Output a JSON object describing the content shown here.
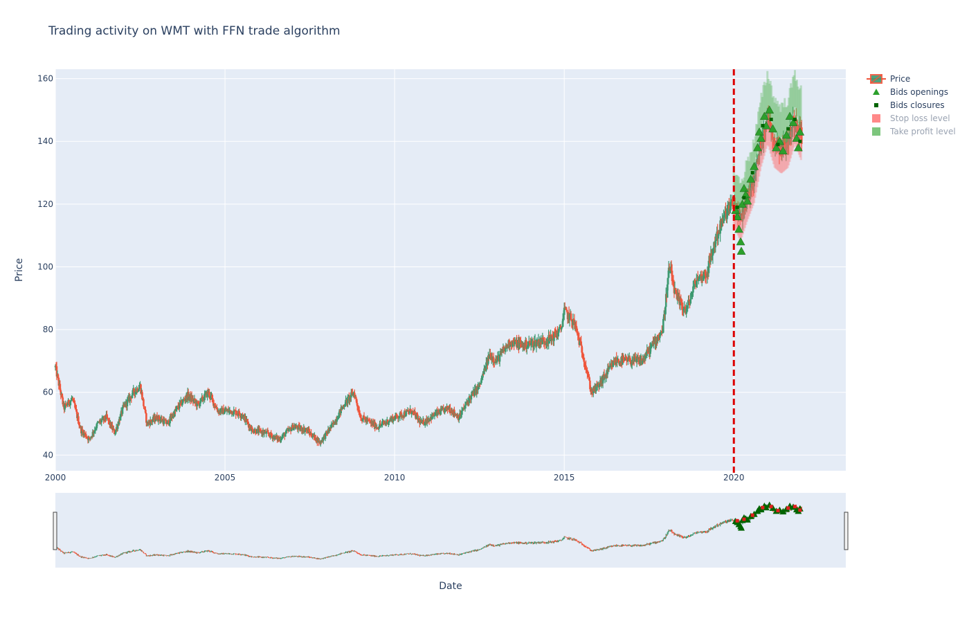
{
  "chart_data": {
    "type": "candlestick",
    "title": "Trading activity on WMT with FFN trade algorithm",
    "xlabel": "Date",
    "ylabel": "Price",
    "xlim": [
      2000,
      2023.3
    ],
    "ylim": [
      35,
      163
    ],
    "x_ticks": [
      2000,
      2005,
      2010,
      2015,
      2020
    ],
    "x_tick_labels": [
      "2000",
      "2005",
      "2010",
      "2015",
      "2020"
    ],
    "y_ticks": [
      40,
      60,
      80,
      100,
      120,
      140,
      160
    ],
    "y_tick_labels": [
      "40",
      "60",
      "80",
      "100",
      "120",
      "140",
      "160"
    ],
    "grid": true,
    "legend_position": "top-right",
    "range_slider": true,
    "split_date": 2020.0,
    "colors": {
      "plot_bg": "#e5ecf6",
      "increasing": "#3d9970",
      "decreasing": "#ef553b",
      "bid_open": "#2ca02c",
      "bid_close": "#006400",
      "stop_loss": "#ff6b6b",
      "take_profit": "#5cb85c",
      "split_line": "#dd0000"
    },
    "legend": [
      {
        "name": "Price",
        "symbol": "candle",
        "muted": false
      },
      {
        "name": "Bids openings",
        "symbol": "triangle-up",
        "muted": false
      },
      {
        "name": "Bids closures",
        "symbol": "square",
        "muted": false
      },
      {
        "name": "Stop loss level",
        "symbol": "rect-red",
        "muted": true
      },
      {
        "name": "Take profit level",
        "symbol": "rect-green",
        "muted": true
      }
    ],
    "price_path": [
      [
        2000.0,
        68
      ],
      [
        2000.25,
        55
      ],
      [
        2000.5,
        58
      ],
      [
        2000.75,
        48
      ],
      [
        2001.0,
        45
      ],
      [
        2001.25,
        50
      ],
      [
        2001.5,
        52
      ],
      [
        2001.75,
        47
      ],
      [
        2002.0,
        55
      ],
      [
        2002.3,
        60
      ],
      [
        2002.5,
        62
      ],
      [
        2002.7,
        50
      ],
      [
        2003.0,
        52
      ],
      [
        2003.3,
        50
      ],
      [
        2003.6,
        55
      ],
      [
        2003.9,
        59
      ],
      [
        2004.2,
        56
      ],
      [
        2004.5,
        60
      ],
      [
        2004.8,
        54
      ],
      [
        2005.2,
        54
      ],
      [
        2005.5,
        53
      ],
      [
        2005.8,
        48
      ],
      [
        2006.2,
        47
      ],
      [
        2006.6,
        45
      ],
      [
        2007.0,
        49
      ],
      [
        2007.4,
        48
      ],
      [
        2007.8,
        44
      ],
      [
        2008.2,
        50
      ],
      [
        2008.5,
        56
      ],
      [
        2008.8,
        60
      ],
      [
        2009.0,
        52
      ],
      [
        2009.5,
        49
      ],
      [
        2010.0,
        52
      ],
      [
        2010.5,
        54
      ],
      [
        2010.8,
        50
      ],
      [
        2011.2,
        53
      ],
      [
        2011.6,
        55
      ],
      [
        2011.9,
        52
      ],
      [
        2012.2,
        58
      ],
      [
        2012.5,
        62
      ],
      [
        2012.8,
        72
      ],
      [
        2013.0,
        70
      ],
      [
        2013.4,
        76
      ],
      [
        2013.8,
        75
      ],
      [
        2014.2,
        76
      ],
      [
        2014.6,
        77
      ],
      [
        2014.9,
        80
      ],
      [
        2015.0,
        86
      ],
      [
        2015.3,
        82
      ],
      [
        2015.6,
        70
      ],
      [
        2015.8,
        60
      ],
      [
        2016.0,
        62
      ],
      [
        2016.5,
        70
      ],
      [
        2016.9,
        70
      ],
      [
        2017.3,
        70
      ],
      [
        2017.6,
        75
      ],
      [
        2017.9,
        80
      ],
      [
        2018.1,
        100
      ],
      [
        2018.3,
        90
      ],
      [
        2018.6,
        86
      ],
      [
        2018.9,
        96
      ],
      [
        2019.2,
        98
      ],
      [
        2019.5,
        110
      ],
      [
        2019.8,
        118
      ],
      [
        2020.0,
        120
      ],
      [
        2020.2,
        115
      ],
      [
        2020.4,
        122
      ],
      [
        2020.6,
        128
      ],
      [
        2020.8,
        140
      ],
      [
        2021.0,
        148
      ],
      [
        2021.2,
        140
      ],
      [
        2021.4,
        138
      ],
      [
        2021.6,
        140
      ],
      [
        2021.8,
        148
      ],
      [
        2022.0,
        142
      ]
    ],
    "bid_openings": [
      [
        2020.05,
        118
      ],
      [
        2020.1,
        116
      ],
      [
        2020.15,
        112
      ],
      [
        2020.2,
        108
      ],
      [
        2020.22,
        105
      ],
      [
        2020.25,
        120
      ],
      [
        2020.3,
        125
      ],
      [
        2020.35,
        123
      ],
      [
        2020.4,
        121
      ],
      [
        2020.5,
        128
      ],
      [
        2020.6,
        132
      ],
      [
        2020.7,
        138
      ],
      [
        2020.75,
        143
      ],
      [
        2020.8,
        141
      ],
      [
        2020.9,
        148
      ],
      [
        2020.95,
        145
      ],
      [
        2021.05,
        150
      ],
      [
        2021.15,
        144
      ],
      [
        2021.25,
        138
      ],
      [
        2021.35,
        140
      ],
      [
        2021.45,
        137
      ],
      [
        2021.55,
        142
      ],
      [
        2021.65,
        148
      ],
      [
        2021.75,
        146
      ],
      [
        2021.85,
        141
      ],
      [
        2021.9,
        138
      ],
      [
        2021.95,
        143
      ]
    ],
    "bid_closures": [
      [
        2020.1,
        119
      ],
      [
        2020.3,
        122
      ],
      [
        2020.55,
        130
      ],
      [
        2020.85,
        145
      ],
      [
        2021.1,
        147
      ],
      [
        2021.3,
        139
      ],
      [
        2021.6,
        144
      ],
      [
        2021.8,
        147
      ],
      [
        2021.95,
        140
      ]
    ]
  }
}
